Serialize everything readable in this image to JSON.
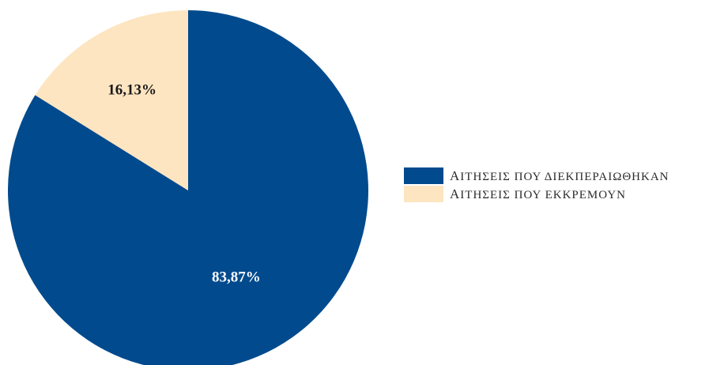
{
  "chart_data": {
    "type": "pie",
    "slices": [
      {
        "label": "ΑΙΤΗΣΕΙΣ ΠΟΥ ΔΙΕΚΠΕΡΑΙΩΘΗΚΑΝ",
        "value": 83.87,
        "value_label": "83,87%",
        "color": "#004a8d",
        "label_color": "#ffffff"
      },
      {
        "label": "ΑΙΤΗΣΕΙΣ ΠΟΥ ΕΚΚΡΕΜΟΥΝ",
        "value": 16.13,
        "value_label": "16,13%",
        "color": "#fde5c1",
        "label_color": "#1a1a1a"
      }
    ],
    "legend": {
      "position": "right",
      "items": [
        {
          "label_first": "Α",
          "label_rest": "ΙΤΗΣΕΙΣ ΠΟΥ ΔΙΕΚΠΕΡΑΙΩΘΗΚΑΝ",
          "color": "#004a8d"
        },
        {
          "label_first": "Α",
          "label_rest": "ΙΤΗΣΕΙΣ ΠΟΥ ΕΚΚΡΕΜΟΥΝ",
          "color": "#fde5c1"
        }
      ]
    }
  }
}
